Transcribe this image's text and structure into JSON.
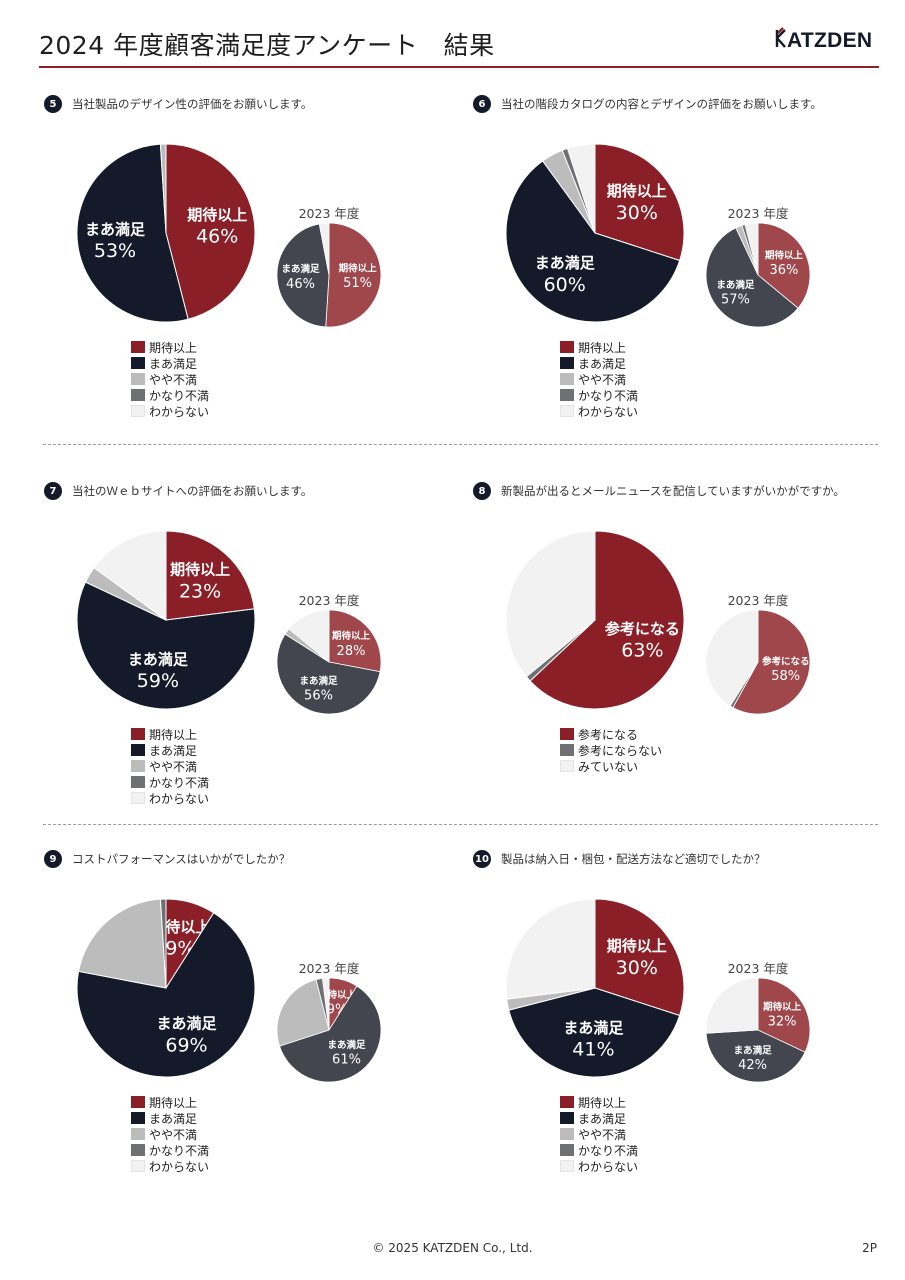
{
  "header": {
    "title": "2024 年度顧客満足度アンケート　結果",
    "logo_text": "KATZDEN"
  },
  "colors": {
    "期待以上": "#8b1f28",
    "まあ満足": "#151a2a",
    "やや不満": "#bcbcbc",
    "かなり不満": "#6e7074",
    "わからない": "#f2f2f2",
    "参考になる": "#8b1f28",
    "参考にならない": "#6e7074",
    "みていない": "#f2f2f2",
    "期待以上_2023": "#a0474c",
    "まあ満足_2023": "#43454f",
    "参考になる_2023": "#a0474c"
  },
  "chart_data": [
    {
      "type": "pie",
      "number": "5",
      "question": "当社製品のデザイン性の評価をお願いします。",
      "legend": [
        "期待以上",
        "まあ満足",
        "やや不満",
        "かなり不満",
        "わからない"
      ],
      "main": {
        "slices": [
          {
            "name": "期待以上",
            "value": 46,
            "label": "期待以上",
            "pct": "46%"
          },
          {
            "name": "まあ満足",
            "value": 53,
            "label": "まあ満足",
            "pct": "53%"
          },
          {
            "name": "やや不満",
            "value": 1
          }
        ]
      },
      "prev": {
        "year_label": "2023 年度",
        "slices": [
          {
            "name": "期待以上",
            "value": 51,
            "label": "期待以上",
            "pct": "51%"
          },
          {
            "name": "まあ満足",
            "value": 46,
            "label": "まあ満足",
            "pct": "46%"
          },
          {
            "name": "わからない",
            "value": 3
          }
        ]
      }
    },
    {
      "type": "pie",
      "number": "6",
      "question": "当社の階段カタログの内容とデザインの評価をお願いします。",
      "legend": [
        "期待以上",
        "まあ満足",
        "やや不満",
        "かなり不満",
        "わからない"
      ],
      "main": {
        "slices": [
          {
            "name": "期待以上",
            "value": 30,
            "label": "期待以上",
            "pct": "30%"
          },
          {
            "name": "まあ満足",
            "value": 60,
            "label": "まあ満足",
            "pct": "60%"
          },
          {
            "name": "やや不満",
            "value": 4
          },
          {
            "name": "かなり不満",
            "value": 1
          },
          {
            "name": "わからない",
            "value": 5
          }
        ]
      },
      "prev": {
        "year_label": "2023 年度",
        "slices": [
          {
            "name": "期待以上",
            "value": 36,
            "label": "期待以上",
            "pct": "36%"
          },
          {
            "name": "まあ満足",
            "value": 57,
            "label": "まあ満足",
            "pct": "57%"
          },
          {
            "name": "やや不満",
            "value": 2
          },
          {
            "name": "かなり不満",
            "value": 1
          },
          {
            "name": "わからない",
            "value": 4
          }
        ]
      }
    },
    {
      "type": "pie",
      "number": "7",
      "question": "当社のＷｅｂサイトへの評価をお願いします。",
      "legend": [
        "期待以上",
        "まあ満足",
        "やや不満",
        "かなり不満",
        "わからない"
      ],
      "main": {
        "slices": [
          {
            "name": "期待以上",
            "value": 23,
            "label": "期待以上",
            "pct": "23%"
          },
          {
            "name": "まあ満足",
            "value": 59,
            "label": "まあ満足",
            "pct": "59%"
          },
          {
            "name": "やや不満",
            "value": 3
          },
          {
            "name": "わからない",
            "value": 15
          }
        ]
      },
      "prev": {
        "year_label": "2023 年度",
        "slices": [
          {
            "name": "期待以上",
            "value": 28,
            "label": "期待以上",
            "pct": "28%"
          },
          {
            "name": "まあ満足",
            "value": 56,
            "label": "まあ満足",
            "pct": "56%"
          },
          {
            "name": "やや不満",
            "value": 2
          },
          {
            "name": "わからない",
            "value": 14
          }
        ]
      }
    },
    {
      "type": "pie",
      "number": "8",
      "question": "新製品が出るとメールニュースを配信していますがいかがですか。",
      "legend": [
        "参考になる",
        "参考にならない",
        "みていない"
      ],
      "main": {
        "slices": [
          {
            "name": "参考になる",
            "value": 63,
            "label": "参考になる",
            "pct": "63%"
          },
          {
            "name": "参考にならない",
            "value": 1
          },
          {
            "name": "みていない",
            "value": 36
          }
        ]
      },
      "prev": {
        "year_label": "2023 年度",
        "slices": [
          {
            "name": "参考になる",
            "value": 58,
            "label": "参考になる",
            "pct": "58%"
          },
          {
            "name": "参考にならない",
            "value": 1
          },
          {
            "name": "みていない",
            "value": 41
          }
        ]
      }
    },
    {
      "type": "pie",
      "number": "9",
      "question": "コストパフォーマンスはいかがでしたか？",
      "legend": [
        "期待以上",
        "まあ満足",
        "やや不満",
        "かなり不満",
        "わからない"
      ],
      "main": {
        "slices": [
          {
            "name": "期待以上",
            "value": 9,
            "label": "期待以上",
            "pct": "9%"
          },
          {
            "name": "まあ満足",
            "value": 69,
            "label": "まあ満足",
            "pct": "69%"
          },
          {
            "name": "やや不満",
            "value": 21
          },
          {
            "name": "かなり不満",
            "value": 1
          }
        ]
      },
      "prev": {
        "year_label": "2023 年度",
        "slices": [
          {
            "name": "期待以上",
            "value": 9,
            "label": "期待以上",
            "pct": "9%"
          },
          {
            "name": "まあ満足",
            "value": 61,
            "label": "まあ満足",
            "pct": "61%"
          },
          {
            "name": "やや不満",
            "value": 26
          },
          {
            "name": "かなり不満",
            "value": 2
          },
          {
            "name": "わからない",
            "value": 2
          }
        ]
      }
    },
    {
      "type": "pie",
      "number": "10",
      "question": "製品は納入日・梱包・配送方法など適切でしたか？",
      "legend": [
        "期待以上",
        "まあ満足",
        "やや不満",
        "かなり不満",
        "わからない"
      ],
      "main": {
        "slices": [
          {
            "name": "期待以上",
            "value": 30,
            "label": "期待以上",
            "pct": "30%"
          },
          {
            "name": "まあ満足",
            "value": 41,
            "label": "まあ満足",
            "pct": "41%"
          },
          {
            "name": "やや不満",
            "value": 2
          },
          {
            "name": "わからない",
            "value": 27
          }
        ]
      },
      "prev": {
        "year_label": "2023 年度",
        "slices": [
          {
            "name": "期待以上",
            "value": 32,
            "label": "期待以上",
            "pct": "32%"
          },
          {
            "name": "まあ満足",
            "value": 42,
            "label": "まあ満足",
            "pct": "42%"
          },
          {
            "name": "わからない",
            "value": 26
          }
        ]
      }
    }
  ],
  "footer": {
    "copyright": "© 2025 KATZDEN Co., Ltd.",
    "page": "2P"
  }
}
